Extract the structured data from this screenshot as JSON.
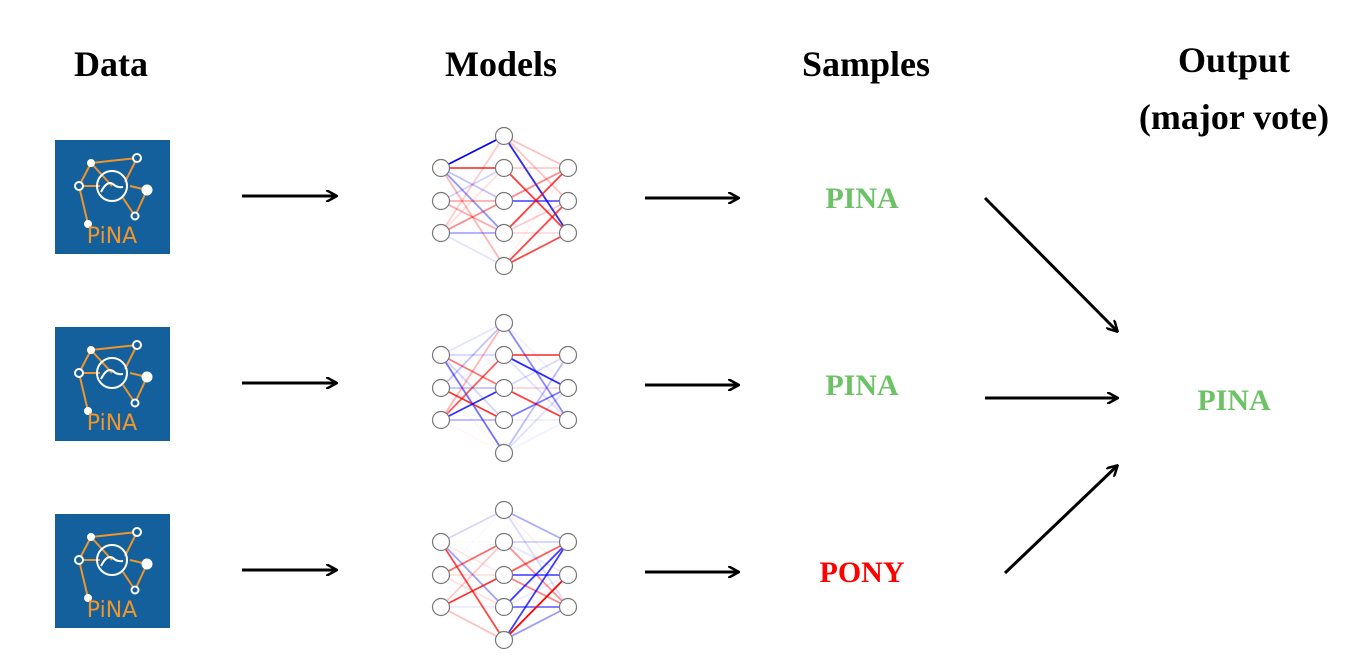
{
  "headers": {
    "data": "Data",
    "models": "Models",
    "samples": "Samples",
    "output_line1": "Output",
    "output_line2": "(major vote)"
  },
  "logo": {
    "text": "PiNA",
    "background": "#13609c",
    "accent": "#f0952a"
  },
  "rows": [
    {
      "sample": "PINA",
      "sample_color": "#6cc264"
    },
    {
      "sample": "PINA",
      "sample_color": "#6cc264"
    },
    {
      "sample": "PONY",
      "sample_color": "#ff0000"
    }
  ],
  "output": {
    "label": "PINA",
    "color": "#6cc264"
  },
  "colors": {
    "positive_weight": "#ff0000",
    "negative_weight": "#0000ff",
    "arrow": "#000000"
  }
}
